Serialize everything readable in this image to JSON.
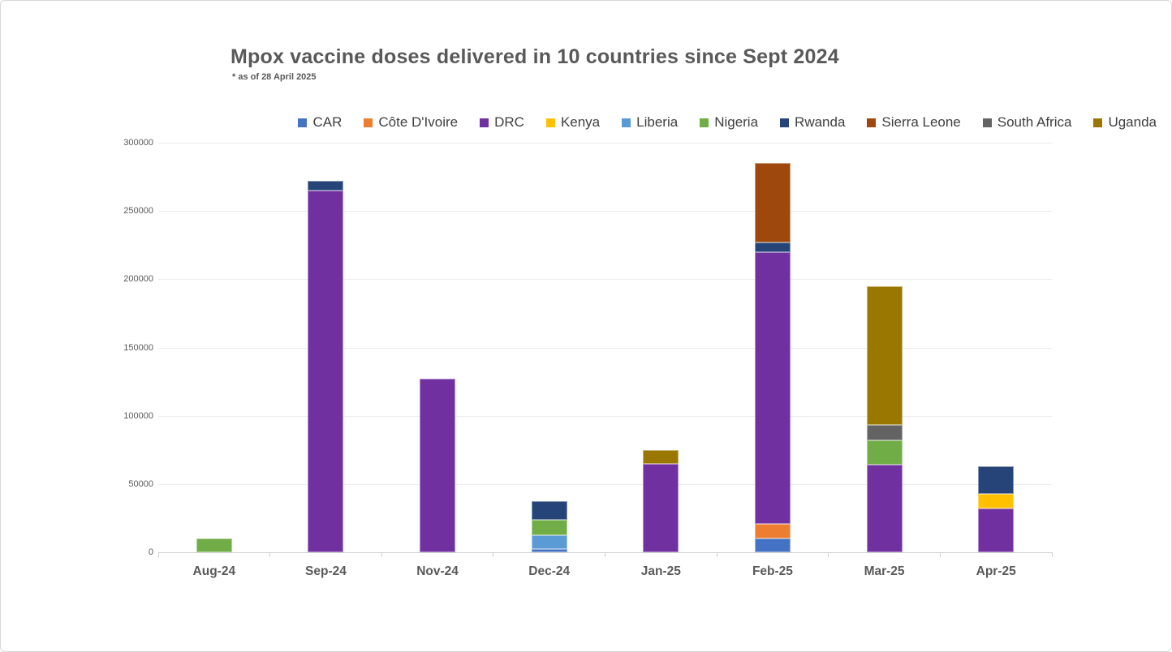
{
  "title": "Mpox vaccine doses delivered in 10 countries since Sept 2024",
  "subtitle": "* as of 28 April 2025",
  "chart_data": {
    "type": "bar",
    "stacked": true,
    "title": "Mpox vaccine doses delivered in 10 countries since Sept 2024",
    "subtitle": "* as of 28 April 2025",
    "xlabel": "",
    "ylabel": "",
    "ylim": [
      0,
      300000
    ],
    "ytick_step": 50000,
    "ytick_labels": [
      "300000",
      "250000",
      "200000",
      "150000",
      "100000",
      "50000",
      "0"
    ],
    "grid": true,
    "legend_position": "top",
    "categories": [
      "Aug-24",
      "Sep-24",
      "Nov-24",
      "Dec-24",
      "Jan-25",
      "Feb-25",
      "Mar-25",
      "Apr-25"
    ],
    "series": [
      {
        "name": "CAR",
        "color": "#4472C4",
        "values": [
          0,
          0,
          0,
          2500,
          0,
          10000,
          0,
          0
        ]
      },
      {
        "name": "Côte D'Ivoire",
        "color": "#ED7D31",
        "values": [
          0,
          0,
          0,
          0,
          0,
          11000,
          0,
          0
        ]
      },
      {
        "name": "DRC",
        "color": "#7030A0",
        "values": [
          0,
          265000,
          127000,
          0,
          65000,
          199000,
          64000,
          32000
        ]
      },
      {
        "name": "Kenya",
        "color": "#FFC000",
        "values": [
          0,
          0,
          0,
          0,
          0,
          0,
          0,
          11000
        ]
      },
      {
        "name": "Liberia",
        "color": "#5B9BD5",
        "values": [
          0,
          0,
          0,
          10000,
          0,
          0,
          0,
          0
        ]
      },
      {
        "name": "Nigeria",
        "color": "#70AD47",
        "values": [
          10000,
          0,
          0,
          11000,
          0,
          0,
          18000,
          0
        ]
      },
      {
        "name": "Rwanda",
        "color": "#264478",
        "values": [
          0,
          7000,
          0,
          14000,
          0,
          7000,
          0,
          20000
        ]
      },
      {
        "name": "Sierra Leone",
        "color": "#9E480E",
        "values": [
          0,
          0,
          0,
          0,
          0,
          58000,
          0,
          0
        ]
      },
      {
        "name": "South Africa",
        "color": "#636363",
        "values": [
          0,
          0,
          0,
          0,
          0,
          0,
          11000,
          0
        ]
      },
      {
        "name": "Uganda",
        "color": "#9A7700",
        "values": [
          0,
          0,
          0,
          0,
          10000,
          0,
          102000,
          0
        ]
      }
    ],
    "totals_by_category": [
      10000,
      272000,
      127000,
      37500,
      75000,
      285000,
      195000,
      63000
    ]
  }
}
